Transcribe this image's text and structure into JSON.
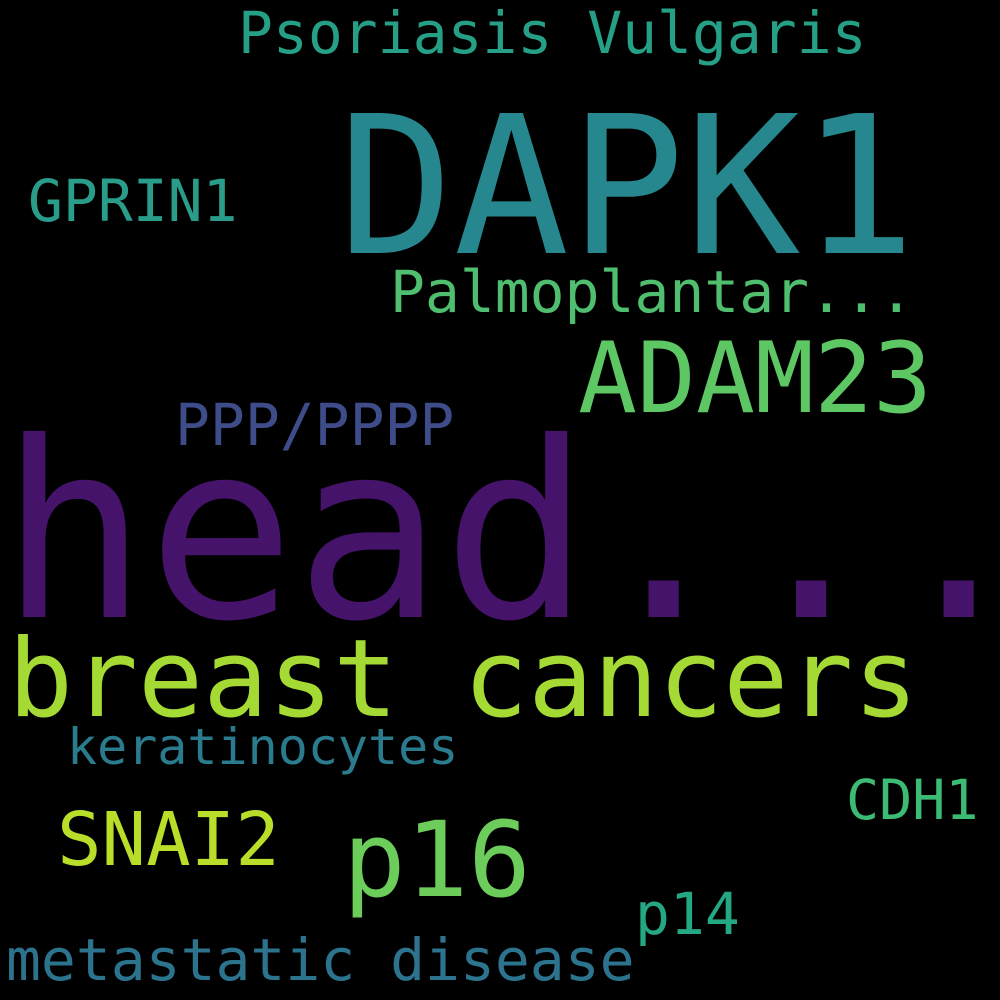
{
  "words": {
    "psoriasis": {
      "text": "Psoriasis Vulgaris",
      "color": "#25a087"
    },
    "dapk1": {
      "text": "DAPK1",
      "color": "#26888e"
    },
    "gprin1": {
      "text": "GPRIN1",
      "color": "#2a9c8a"
    },
    "palmo": {
      "text": "Palmoplantar...",
      "color": "#4fbf6f"
    },
    "adam23": {
      "text": "ADAM23",
      "color": "#5dc863"
    },
    "pppp": {
      "text": "PPP/PPPP",
      "color": "#3e4c8a"
    },
    "head": {
      "text": "head...",
      "color": "#46136a"
    },
    "breast": {
      "text": "breast cancers",
      "color": "#a5da34"
    },
    "kerat": {
      "text": "keratinocytes",
      "color": "#2b7b8e"
    },
    "cdh1": {
      "text": "CDH1",
      "color": "#3cbb75"
    },
    "snai2": {
      "text": "SNAI2",
      "color": "#b8de2a"
    },
    "p16": {
      "text": "p16",
      "color": "#6ccd5a"
    },
    "p14": {
      "text": "p14",
      "color": "#24a884"
    },
    "meta": {
      "text": "metastatic disease",
      "color": "#2c738e"
    }
  }
}
